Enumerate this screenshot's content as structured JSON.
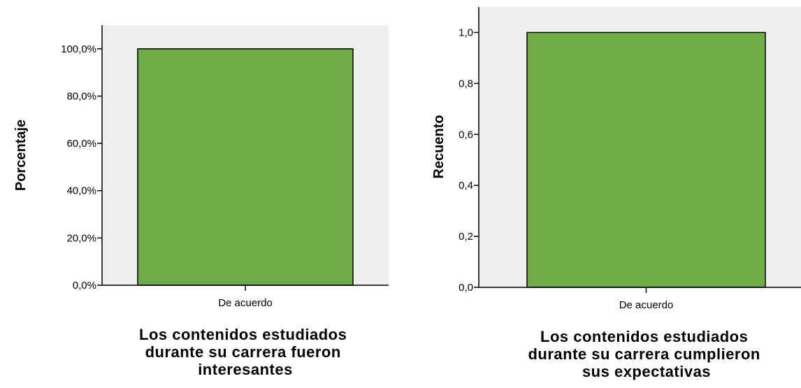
{
  "chart_data": [
    {
      "type": "bar",
      "title_lines": [
        "Los contenidos estudiados",
        "durante su carrera fueron",
        "interesantes"
      ],
      "xlabel": "",
      "ylabel": "Porcentaje",
      "categories": [
        "De acuerdo"
      ],
      "values": [
        100
      ],
      "ylim": [
        0,
        110
      ],
      "yticks": [
        0,
        20,
        40,
        60,
        80,
        100
      ],
      "ytick_labels": [
        "0,0%",
        "20,0%",
        "40,0%",
        "60,0%",
        "80,0%",
        "100,0%"
      ],
      "bar_color": "#6fab46",
      "background_color": "#efefef",
      "grid": false,
      "legend": "none"
    },
    {
      "type": "bar",
      "title_lines": [
        "Los contenidos estudiados",
        "durante su carrera cumplieron",
        "sus expectativas"
      ],
      "xlabel": "",
      "ylabel": "Recuento",
      "categories": [
        "De acuerdo"
      ],
      "values": [
        1.0
      ],
      "ylim": [
        0,
        1.1
      ],
      "yticks": [
        0,
        0.2,
        0.4,
        0.6,
        0.8,
        1.0
      ],
      "ytick_labels": [
        "0,0",
        "0,2",
        "0,4",
        "0,6",
        "0,8",
        "1,0"
      ],
      "bar_color": "#6fab46",
      "background_color": "#efefef",
      "grid": false,
      "legend": "none"
    }
  ]
}
